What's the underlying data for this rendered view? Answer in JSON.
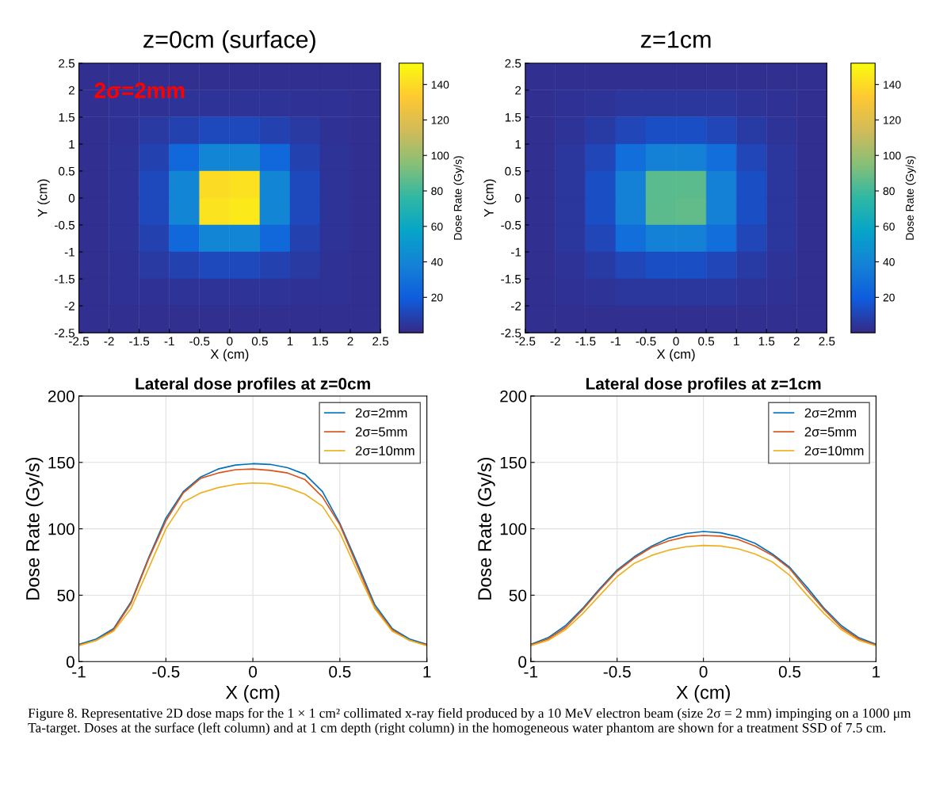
{
  "chart_data": [
    {
      "type": "heatmap",
      "title": "z=0cm (surface)",
      "xlabel": "X (cm)",
      "ylabel": "Y (cm)",
      "clabel": "Dose Rate (Gy/s)",
      "annotations": [
        "2σ=2mm"
      ],
      "xlim": [
        -2.5,
        2.5
      ],
      "xticks": [
        -2.5,
        -2,
        -1.5,
        -1,
        -0.5,
        0,
        0.5,
        1,
        1.5,
        2,
        2.5
      ],
      "ylim": [
        -2.5,
        2.5
      ],
      "yticks": [
        -2.5,
        -2,
        -1.5,
        -1,
        -0.5,
        0,
        0.5,
        1,
        1.5,
        2,
        2.5
      ],
      "clim": [
        0,
        152
      ],
      "cticks": [
        20,
        40,
        60,
        80,
        100,
        120,
        140
      ],
      "cells": [
        [
          2,
          2,
          2,
          2,
          2,
          2,
          2,
          2,
          2,
          2
        ],
        [
          2,
          3,
          3,
          4,
          4,
          4,
          4,
          3,
          3,
          2
        ],
        [
          2,
          3,
          6,
          9,
          12,
          12,
          9,
          6,
          3,
          2
        ],
        [
          2,
          4,
          9,
          25,
          40,
          40,
          25,
          9,
          4,
          2
        ],
        [
          2,
          4,
          12,
          40,
          140,
          142,
          40,
          12,
          4,
          2
        ],
        [
          2,
          4,
          12,
          40,
          143,
          145,
          40,
          12,
          4,
          2
        ],
        [
          2,
          4,
          9,
          25,
          40,
          40,
          25,
          9,
          4,
          2
        ],
        [
          2,
          3,
          6,
          9,
          12,
          12,
          9,
          6,
          3,
          2
        ],
        [
          2,
          3,
          3,
          4,
          4,
          4,
          4,
          3,
          3,
          2
        ],
        [
          2,
          2,
          2,
          2,
          2,
          2,
          2,
          2,
          2,
          2
        ]
      ]
    },
    {
      "type": "heatmap",
      "title": "z=1cm",
      "xlabel": "X (cm)",
      "ylabel": "Y (cm)",
      "clabel": "Dose Rate (Gy/s)",
      "xlim": [
        -2.5,
        2.5
      ],
      "xticks": [
        -2.5,
        -2,
        -1.5,
        -1,
        -0.5,
        0,
        0.5,
        1,
        1.5,
        2,
        2.5
      ],
      "ylim": [
        -2.5,
        2.5
      ],
      "yticks": [
        -2.5,
        -2,
        -1.5,
        -1,
        -0.5,
        0,
        0.5,
        1,
        1.5,
        2,
        2.5
      ],
      "clim": [
        0,
        152
      ],
      "cticks": [
        20,
        40,
        60,
        80,
        100,
        120,
        140
      ],
      "cells": [
        [
          2,
          2,
          2,
          2,
          2,
          2,
          2,
          2,
          2,
          2
        ],
        [
          2,
          3,
          4,
          5,
          5,
          5,
          5,
          4,
          3,
          2
        ],
        [
          2,
          4,
          7,
          11,
          14,
          14,
          11,
          7,
          4,
          2
        ],
        [
          2,
          5,
          11,
          28,
          38,
          38,
          28,
          11,
          5,
          2
        ],
        [
          2,
          5,
          14,
          38,
          85,
          86,
          38,
          14,
          5,
          2
        ],
        [
          2,
          5,
          14,
          38,
          86,
          87,
          38,
          14,
          5,
          2
        ],
        [
          2,
          5,
          11,
          28,
          38,
          38,
          28,
          11,
          5,
          2
        ],
        [
          2,
          4,
          7,
          11,
          14,
          14,
          11,
          7,
          4,
          2
        ],
        [
          2,
          3,
          4,
          5,
          5,
          5,
          5,
          4,
          3,
          2
        ],
        [
          2,
          2,
          2,
          2,
          2,
          2,
          2,
          2,
          2,
          2
        ]
      ]
    },
    {
      "type": "line",
      "title": "Lateral dose profiles at z=0cm",
      "xlabel": "X (cm)",
      "ylabel": "Dose Rate (Gy/s)",
      "xlim": [
        -1,
        1
      ],
      "xticks": [
        -1,
        -0.5,
        0,
        0.5,
        1
      ],
      "ylim": [
        0,
        200
      ],
      "yticks": [
        0,
        50,
        100,
        150,
        200
      ],
      "grid": true,
      "legend": "top right",
      "line_style": "solid",
      "marker": "none",
      "x": [
        -1,
        -0.9,
        -0.8,
        -0.7,
        -0.6,
        -0.5,
        -0.4,
        -0.3,
        -0.2,
        -0.1,
        0,
        0.1,
        0.2,
        0.3,
        0.4,
        0.5,
        0.6,
        0.7,
        0.8,
        0.9,
        1
      ],
      "series": [
        {
          "name": "2σ=2mm",
          "color": "#0072bd",
          "values": [
            13,
            17,
            25,
            45,
            78,
            108,
            128,
            139,
            145,
            148,
            149,
            148.5,
            146,
            141,
            128,
            104,
            74,
            43,
            25,
            17,
            13
          ]
        },
        {
          "name": "2σ=5mm",
          "color": "#d95319",
          "values": [
            12.5,
            16,
            24,
            44,
            77,
            106,
            127,
            138,
            142,
            144.5,
            145,
            144,
            142,
            137,
            124,
            103,
            72,
            41,
            24,
            16,
            12.5
          ]
        },
        {
          "name": "2σ=10mm",
          "color": "#edb120",
          "values": [
            12,
            16,
            23,
            40,
            70,
            100,
            120,
            127,
            131,
            133.5,
            134.5,
            134,
            131,
            126,
            117,
            97,
            68,
            40,
            23,
            16,
            12
          ]
        }
      ]
    },
    {
      "type": "line",
      "title": "Lateral dose profiles at z=1cm",
      "xlabel": "X (cm)",
      "ylabel": "Dose Rate (Gy/s)",
      "xlim": [
        -1,
        1
      ],
      "xticks": [
        -1,
        -0.5,
        0,
        0.5,
        1
      ],
      "ylim": [
        0,
        200
      ],
      "yticks": [
        0,
        50,
        100,
        150,
        200
      ],
      "grid": true,
      "legend": "top right",
      "line_style": "solid",
      "marker": "none",
      "annotations": [
        "Figure 8. Representative 2D dose maps for the 1 × 1 cm² collimated x-ray field produced by a 10 MeV electron beam (size 2σ = 2 mm) impinging on a 1000 μm Ta-target. Doses at the surface (left column) and at 1 cm depth (right column) in the homogeneous water phantom are shown for a treatment SSD of 7.5 cm."
      ],
      "x": [
        -1,
        -0.9,
        -0.8,
        -0.7,
        -0.6,
        -0.5,
        -0.4,
        -0.3,
        -0.2,
        -0.1,
        0,
        0.1,
        0.2,
        0.3,
        0.4,
        0.5,
        0.6,
        0.7,
        0.8,
        0.9,
        1
      ],
      "series": [
        {
          "name": "2σ=2mm",
          "color": "#0072bd",
          "values": [
            13,
            18,
            27,
            40,
            55,
            69,
            79,
            87,
            93,
            96.5,
            98,
            97,
            94,
            89,
            81,
            71,
            56,
            40,
            27,
            18,
            13
          ]
        },
        {
          "name": "2σ=5mm",
          "color": "#d95319",
          "values": [
            12.5,
            17,
            25.5,
            39,
            54,
            68,
            78,
            86,
            91,
            94,
            95,
            94.5,
            92,
            87,
            80,
            70,
            54,
            39,
            25.5,
            17,
            12.5
          ]
        },
        {
          "name": "2σ=10mm",
          "color": "#edb120",
          "values": [
            12,
            16,
            24,
            36,
            50,
            64,
            74,
            80,
            84,
            86.5,
            87.5,
            87,
            85,
            81,
            75,
            65,
            50,
            36,
            24,
            16,
            12
          ]
        }
      ]
    }
  ]
}
